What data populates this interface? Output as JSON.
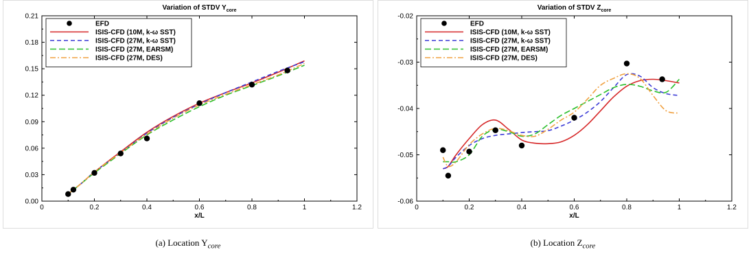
{
  "captions": [
    {
      "prefix": "(a)  Location Y",
      "sub": "core"
    },
    {
      "prefix": "(b)  Location Z",
      "sub": "core"
    }
  ],
  "chart_data": [
    {
      "type": "line",
      "title": "Variation of STDV Y",
      "title_sub": "core",
      "xlabel": "x/L",
      "ylabel": "",
      "xlim": [
        0,
        1.2
      ],
      "ylim": [
        0,
        0.21
      ],
      "xticks": [
        0,
        0.2,
        0.4,
        0.6,
        0.8,
        1,
        1.2
      ],
      "xtick_labels": [
        "0",
        "0.2",
        "0.4",
        "0.6",
        "0.8",
        "1",
        "1.2"
      ],
      "yticks": [
        0,
        0.03,
        0.06,
        0.09,
        0.12,
        0.15,
        0.18,
        0.21
      ],
      "ytick_labels": [
        "0.00",
        "0.03",
        "0.06",
        "0.09",
        "0.12",
        "0.15",
        "0.18",
        "0.21"
      ],
      "legend_position": "top-left",
      "series": [
        {
          "name": "EFD",
          "kind": "marker",
          "color": "#000000",
          "x": [
            0.1,
            0.12,
            0.2,
            0.3,
            0.4,
            0.6,
            0.8,
            0.935
          ],
          "y": [
            0.008,
            0.013,
            0.032,
            0.054,
            0.071,
            0.111,
            0.132,
            0.148
          ]
        },
        {
          "name": "ISIS-CFD (10M, k-ω SST)",
          "kind": "line",
          "dash": "",
          "color": "#d62728",
          "x": [
            0.1,
            0.15,
            0.2,
            0.3,
            0.4,
            0.5,
            0.6,
            0.7,
            0.8,
            0.9,
            1.0
          ],
          "y": [
            0.008,
            0.02,
            0.033,
            0.056,
            0.078,
            0.096,
            0.111,
            0.123,
            0.134,
            0.146,
            0.159
          ]
        },
        {
          "name": "ISIS-CFD (27M, k-ω SST)",
          "kind": "line",
          "dash": "6,4",
          "color": "#3b3bd6",
          "x": [
            0.1,
            0.15,
            0.2,
            0.3,
            0.4,
            0.5,
            0.6,
            0.7,
            0.8,
            0.9,
            1.0
          ],
          "y": [
            0.008,
            0.02,
            0.033,
            0.055,
            0.077,
            0.095,
            0.11,
            0.123,
            0.135,
            0.147,
            0.158
          ]
        },
        {
          "name": "ISIS-CFD (27M, EARSM)",
          "kind": "line",
          "dash": "9,4",
          "color": "#2bbf2b",
          "x": [
            0.1,
            0.15,
            0.2,
            0.3,
            0.4,
            0.5,
            0.6,
            0.7,
            0.8,
            0.9,
            1.0
          ],
          "y": [
            0.008,
            0.02,
            0.032,
            0.054,
            0.075,
            0.092,
            0.107,
            0.12,
            0.131,
            0.142,
            0.154
          ]
        },
        {
          "name": "ISIS-CFD (27M, DES)",
          "kind": "line",
          "dash": "8,3,2,3",
          "color": "#f0a040",
          "x": [
            0.1,
            0.15,
            0.2,
            0.3,
            0.4,
            0.5,
            0.6,
            0.7,
            0.8,
            0.9,
            1.0
          ],
          "y": [
            0.008,
            0.02,
            0.033,
            0.055,
            0.076,
            0.094,
            0.109,
            0.121,
            0.132,
            0.143,
            0.156
          ]
        }
      ]
    },
    {
      "type": "line",
      "title": "Variation of STDV Z",
      "title_sub": "core",
      "xlabel": "x/L",
      "ylabel": "",
      "xlim": [
        0,
        1.2
      ],
      "ylim": [
        -0.06,
        -0.02
      ],
      "xticks": [
        0,
        0.2,
        0.4,
        0.6,
        0.8,
        1,
        1.2
      ],
      "xtick_labels": [
        "0",
        "0.2",
        "0.4",
        "0.6",
        "0.8",
        "1",
        "1.2"
      ],
      "yticks": [
        -0.06,
        -0.05,
        -0.04,
        -0.03,
        -0.02
      ],
      "ytick_labels": [
        "-0.06",
        "-0.05",
        "-0.04",
        "-0.03",
        "-0.02"
      ],
      "legend_position": "top-left",
      "series": [
        {
          "name": "EFD",
          "kind": "marker",
          "color": "#000000",
          "x": [
            0.1,
            0.12,
            0.2,
            0.3,
            0.4,
            0.6,
            0.8,
            0.935
          ],
          "y": [
            -0.049,
            -0.0545,
            -0.0493,
            -0.0447,
            -0.048,
            -0.042,
            -0.0303,
            -0.0337
          ]
        },
        {
          "name": "ISIS-CFD (10M, k-ω SST)",
          "kind": "line",
          "dash": "",
          "color": "#d62728",
          "x": [
            0.1,
            0.12,
            0.15,
            0.2,
            0.25,
            0.3,
            0.35,
            0.4,
            0.45,
            0.5,
            0.55,
            0.6,
            0.65,
            0.7,
            0.75,
            0.8,
            0.85,
            0.9,
            0.95,
            1.0
          ],
          "y": [
            -0.053,
            -0.0525,
            -0.05,
            -0.0465,
            -0.0435,
            -0.0425,
            -0.0445,
            -0.0468,
            -0.0475,
            -0.0476,
            -0.0472,
            -0.0458,
            -0.0435,
            -0.0405,
            -0.0375,
            -0.0352,
            -0.034,
            -0.0337,
            -0.034,
            -0.0345
          ]
        },
        {
          "name": "ISIS-CFD (27M, k-ω SST)",
          "kind": "line",
          "dash": "6,4",
          "color": "#3b3bd6",
          "x": [
            0.1,
            0.12,
            0.15,
            0.2,
            0.25,
            0.3,
            0.35,
            0.4,
            0.45,
            0.5,
            0.55,
            0.6,
            0.65,
            0.7,
            0.75,
            0.8,
            0.85,
            0.9,
            0.95,
            1.0
          ],
          "y": [
            -0.053,
            -0.0525,
            -0.0505,
            -0.048,
            -0.0465,
            -0.0458,
            -0.0455,
            -0.0452,
            -0.045,
            -0.0448,
            -0.0438,
            -0.0425,
            -0.0408,
            -0.0385,
            -0.0355,
            -0.0327,
            -0.033,
            -0.0355,
            -0.0368,
            -0.0372
          ]
        },
        {
          "name": "ISIS-CFD (27M, EARSM)",
          "kind": "line",
          "dash": "9,4",
          "color": "#2bbf2b",
          "x": [
            0.1,
            0.12,
            0.15,
            0.2,
            0.25,
            0.3,
            0.35,
            0.4,
            0.45,
            0.5,
            0.55,
            0.6,
            0.65,
            0.7,
            0.75,
            0.8,
            0.85,
            0.9,
            0.95,
            1.0
          ],
          "y": [
            -0.0515,
            -0.0515,
            -0.0515,
            -0.05,
            -0.046,
            -0.0445,
            -0.045,
            -0.046,
            -0.0455,
            -0.0435,
            -0.0415,
            -0.04,
            -0.0385,
            -0.037,
            -0.0355,
            -0.0348,
            -0.0352,
            -0.0362,
            -0.0365,
            -0.0337
          ]
        },
        {
          "name": "ISIS-CFD (27M, DES)",
          "kind": "line",
          "dash": "8,3,2,3",
          "color": "#f0a040",
          "x": [
            0.1,
            0.12,
            0.15,
            0.2,
            0.25,
            0.3,
            0.35,
            0.4,
            0.45,
            0.5,
            0.55,
            0.6,
            0.65,
            0.7,
            0.75,
            0.8,
            0.85,
            0.9,
            0.95,
            1.0
          ],
          "y": [
            -0.0505,
            -0.0525,
            -0.0515,
            -0.0478,
            -0.0455,
            -0.0443,
            -0.0448,
            -0.0458,
            -0.046,
            -0.0445,
            -0.0425,
            -0.0408,
            -0.038,
            -0.035,
            -0.0335,
            -0.0325,
            -0.0335,
            -0.0372,
            -0.0405,
            -0.041
          ]
        }
      ]
    }
  ]
}
